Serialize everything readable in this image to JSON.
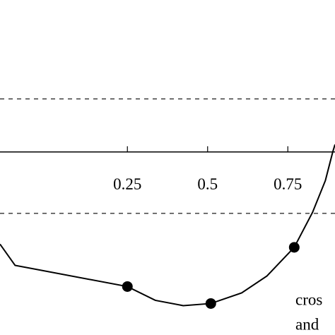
{
  "chart_data": {
    "type": "line",
    "xlim": [
      -0.147,
      0.897
    ],
    "ylim": [
      -1.727,
      1.433
    ],
    "xticks": [
      0.25,
      0.5,
      0.75
    ],
    "reference_lines": [
      0.5,
      -0.58
    ],
    "series": [
      {
        "type": "line",
        "color": "#000000",
        "x": [
          -0.147,
          -0.1,
          0.25,
          0.337,
          0.424,
          0.51,
          0.606,
          0.685,
          0.77,
          0.827,
          0.867,
          0.89,
          0.897
        ],
        "values": [
          -0.87,
          -1.07,
          -1.27,
          -1.4,
          -1.45,
          -1.43,
          -1.33,
          -1.17,
          -0.9,
          -0.57,
          -0.27,
          0,
          0.07
        ]
      },
      {
        "type": "scatter",
        "color": "#000000",
        "x": [
          0.25,
          0.51,
          0.77
        ],
        "values": [
          -1.27,
          -1.43,
          -0.9
        ]
      }
    ],
    "annotations": [
      "cros",
      "and"
    ]
  }
}
